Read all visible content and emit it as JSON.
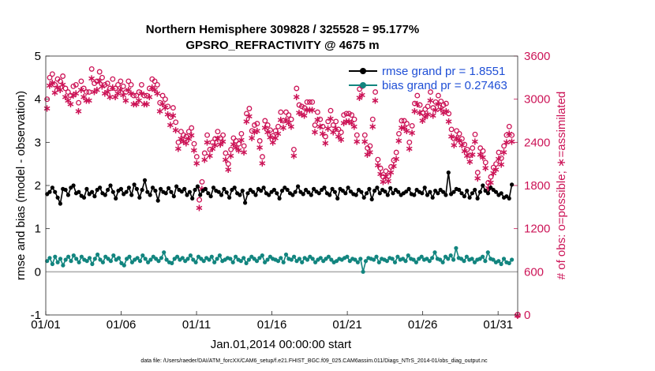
{
  "chart_data": {
    "type": "line",
    "title": "Northern Hemisphere 309828 / 325528 = 95.177%",
    "subtitle": "GPSRO_REFRACTIVITY @ 4675 m",
    "xlabel": "Jan.01,2014 00:00:00 start",
    "ylabel": "rmse and bias (model - observation)",
    "y2label": "# of obs: o=possible; ∗=assimilated",
    "footnote": "data file: /Users/raeder/DAI/ATM_forcXX/CAM6_setup/f.e21.FHIST_BGC.f09_025.CAM6assim.011/Diags_NTrS_2014-01/obs_diag_output.nc",
    "xlim": [
      1,
      32.3
    ],
    "ylim": [
      -1,
      5
    ],
    "y2lim": [
      0,
      3600
    ],
    "x_ticks": [
      1,
      6,
      11,
      16,
      21,
      26,
      31
    ],
    "x_tick_labels": [
      "01/01",
      "01/06",
      "01/11",
      "01/16",
      "01/21",
      "01/26",
      "01/31"
    ],
    "y_ticks": [
      -1,
      0,
      1,
      2,
      3,
      4,
      5
    ],
    "y_tick_labels": [
      "-1",
      "0",
      "1",
      "2",
      "3",
      "4",
      "5"
    ],
    "y2_ticks": [
      0,
      600,
      1200,
      1800,
      2400,
      3000,
      3600
    ],
    "y2_tick_labels": [
      "0",
      "600",
      "1200",
      "1800",
      "2400",
      "3000",
      "3600"
    ],
    "zero_line": 0,
    "legend_position": "top-right",
    "colors": {
      "rmse": "#000000",
      "bias": "#12857f",
      "obs": "#cc1457",
      "zero": "#aaaaaa",
      "right_axis": "#cc1457"
    },
    "series": [
      {
        "name": "rmse grand pr = 1.8551",
        "axis": "left",
        "values": [
          1.8,
          1.85,
          1.95,
          1.85,
          1.72,
          1.58,
          1.92,
          1.9,
          1.78,
          1.95,
          2.0,
          1.82,
          1.85,
          1.76,
          1.72,
          1.92,
          1.8,
          1.85,
          1.75,
          1.9,
          1.95,
          1.82,
          1.78,
          1.9,
          2.0,
          1.85,
          1.7,
          1.88,
          1.92,
          1.8,
          1.85,
          1.95,
          1.78,
          2.02,
          1.92,
          1.72,
          1.9,
          2.12,
          1.85,
          1.78,
          1.95,
          1.88,
          1.65,
          1.92,
          1.85,
          1.82,
          1.94,
          1.85,
          1.75,
          1.98,
          1.9,
          1.86,
          1.92,
          1.78,
          1.85,
          1.7,
          1.9,
          1.98,
          1.78,
          1.88,
          1.92,
          1.82,
          1.75,
          1.95,
          1.88,
          1.85,
          1.78,
          1.92,
          1.84,
          1.72,
          1.9,
          1.95,
          1.82,
          1.78,
          1.88,
          1.6,
          1.82,
          1.9,
          1.85,
          1.78,
          1.92,
          1.88,
          1.95,
          1.82,
          1.78,
          1.85,
          1.9,
          1.82,
          1.7,
          1.88,
          1.95,
          1.9,
          1.82,
          1.78,
          1.85,
          1.98,
          1.85,
          1.8,
          1.9,
          1.84,
          1.78,
          1.92,
          1.86,
          1.82,
          1.9,
          1.95,
          1.82,
          1.78,
          1.92,
          1.85,
          1.7,
          1.92,
          1.88,
          1.82,
          1.95,
          1.86,
          1.8,
          1.78,
          1.9,
          1.85,
          1.72,
          1.82,
          1.92,
          1.68,
          1.88,
          1.95,
          1.82,
          1.9,
          1.86,
          1.78,
          1.94,
          1.82,
          1.9,
          1.85,
          1.78,
          1.82,
          1.86,
          1.92,
          1.8,
          1.78,
          1.9,
          1.85,
          1.82,
          1.95,
          1.78,
          1.85,
          1.72,
          1.88,
          1.82,
          1.9,
          1.85,
          1.78,
          2.3,
          1.8,
          1.85,
          1.92,
          1.9,
          1.82,
          1.75,
          1.88,
          1.72,
          1.82,
          1.9,
          1.7,
          1.85,
          2.0,
          1.88,
          1.82,
          1.95,
          1.9,
          1.85,
          1.78,
          1.82,
          1.72,
          1.75,
          1.7,
          2.02
        ]
      },
      {
        "name": "bias grand pr = 0.27463",
        "axis": "left",
        "values": [
          0.25,
          0.32,
          0.18,
          0.35,
          0.22,
          0.3,
          0.15,
          0.28,
          0.35,
          0.25,
          0.38,
          0.3,
          0.22,
          0.35,
          0.28,
          0.25,
          0.32,
          0.18,
          0.3,
          0.4,
          0.28,
          0.22,
          0.35,
          0.3,
          0.25,
          0.38,
          0.28,
          0.32,
          0.2,
          0.15,
          0.3,
          0.35,
          0.22,
          0.28,
          0.32,
          0.25,
          0.38,
          0.3,
          0.22,
          0.28,
          0.35,
          0.3,
          0.25,
          0.32,
          0.45,
          0.28,
          0.22,
          0.2,
          0.3,
          0.35,
          0.28,
          0.32,
          0.25,
          0.3,
          0.38,
          0.28,
          0.22,
          0.35,
          0.3,
          0.25,
          0.32,
          0.28,
          0.35,
          0.22,
          0.3,
          0.38,
          0.25,
          0.28,
          0.32,
          0.3,
          0.22,
          0.35,
          0.28,
          0.25,
          0.32,
          0.2,
          0.28,
          0.35,
          0.3,
          0.25,
          0.32,
          0.38,
          0.22,
          0.28,
          0.35,
          0.3,
          0.28,
          0.25,
          0.32,
          0.22,
          0.4,
          0.3,
          0.28,
          0.35,
          0.25,
          0.3,
          0.22,
          0.32,
          0.28,
          0.35,
          0.3,
          0.22,
          0.28,
          0.32,
          0.25,
          0.3,
          0.35,
          0.28,
          0.22,
          0.25,
          0.3,
          0.28,
          0.32,
          0.35,
          0.25,
          0.3,
          0.28,
          0.22,
          0.3,
          0.0,
          0.25,
          0.32,
          0.3,
          0.28,
          0.35,
          0.22,
          0.3,
          0.28,
          0.25,
          0.32,
          0.3,
          0.22,
          0.35,
          0.28,
          0.3,
          0.25,
          0.38,
          0.3,
          0.28,
          0.22,
          0.3,
          0.35,
          0.28,
          0.3,
          0.25,
          0.32,
          0.45,
          0.3,
          0.28,
          0.22,
          0.35,
          0.3,
          0.38,
          0.28,
          0.55,
          0.32,
          0.3,
          0.25,
          0.35,
          0.28,
          0.3,
          0.22,
          0.28,
          0.3,
          0.35,
          0.25,
          0.45,
          0.3,
          0.28,
          0.22,
          0.25,
          0.18,
          0.3,
          0.22,
          0.2,
          0.28
        ]
      },
      {
        "name": "possible",
        "axis": "right",
        "marker": "o",
        "values": [
          3000,
          3300,
          3350,
          3200,
          3280,
          3250,
          3320,
          3150,
          3100,
          3050,
          3180,
          3200,
          2950,
          3250,
          3150,
          3100,
          3100,
          3420,
          3220,
          3250,
          3380,
          3300,
          3200,
          3220,
          3150,
          3280,
          3150,
          3200,
          3250,
          3180,
          3100,
          3250,
          3200,
          3050,
          3050,
          3100,
          3200,
          3050,
          3050,
          3150,
          3280,
          3250,
          3200,
          2950,
          3050,
          3000,
          2900,
          2750,
          2880,
          2680,
          2400,
          2550,
          2500,
          2480,
          2550,
          2600,
          2380,
          2200,
          1600,
          1850,
          2250,
          2500,
          2300,
          2400,
          2450,
          2550,
          2460,
          2500,
          2250,
          2100,
          2300,
          2460,
          2420,
          2380,
          2520,
          2350,
          2800,
          2870,
          2560,
          2640,
          2660,
          2420,
          2200,
          2700,
          2640,
          2570,
          2490,
          2560,
          2620,
          2820,
          2700,
          2820,
          2780,
          2720,
          2300,
          3150,
          2920,
          2900,
          2880,
          2960,
          2960,
          2960,
          2640,
          2820,
          2720,
          2620,
          2480,
          2690,
          2840,
          2640,
          2690,
          2580,
          2540,
          2780,
          2800,
          2800,
          2780,
          2720,
          2500,
          3140,
          3180,
          2500,
          2320,
          2350,
          2720,
          3100,
          2160,
          2040,
          1920,
          2000,
          1930,
          2060,
          2150,
          2260,
          2520,
          2700,
          2700,
          2660,
          2400,
          2630,
          2940,
          3050,
          2920,
          2810,
          2860,
          2900,
          3100,
          2880,
          2960,
          3050,
          2970,
          2920,
          2940,
          2800,
          2580,
          2450,
          2560,
          2520,
          2450,
          2370,
          2300,
          2220,
          2320,
          2510,
          1980,
          2320,
          2280,
          2120,
          1840,
          1920,
          2050,
          2100,
          2260,
          2180,
          2350,
          2500,
          2620,
          2500
        ]
      },
      {
        "name": "assimilated",
        "axis": "right",
        "marker": "*",
        "values": [
          2880,
          3200,
          3240,
          3100,
          3170,
          3140,
          3210,
          3040,
          2990,
          2940,
          3060,
          3090,
          2840,
          3140,
          3040,
          2990,
          2990,
          3300,
          3110,
          3140,
          3260,
          3190,
          3090,
          3110,
          3040,
          3170,
          3040,
          3090,
          3140,
          3070,
          2990,
          3140,
          3090,
          2940,
          2940,
          2990,
          3090,
          2940,
          2940,
          3040,
          3170,
          3140,
          3090,
          2840,
          2940,
          2890,
          2800,
          2650,
          2780,
          2580,
          2320,
          2460,
          2420,
          2400,
          2460,
          2510,
          2300,
          2120,
          1500,
          1760,
          2170,
          2410,
          2220,
          2320,
          2370,
          2460,
          2380,
          2420,
          2170,
          2030,
          2220,
          2380,
          2340,
          2300,
          2440,
          2270,
          2700,
          2770,
          2470,
          2550,
          2570,
          2340,
          2120,
          2610,
          2550,
          2480,
          2410,
          2470,
          2530,
          2720,
          2610,
          2720,
          2680,
          2630,
          2220,
          3040,
          2820,
          2800,
          2780,
          2860,
          2860,
          2860,
          2550,
          2720,
          2630,
          2530,
          2400,
          2600,
          2740,
          2550,
          2600,
          2490,
          2450,
          2680,
          2700,
          2700,
          2680,
          2630,
          2420,
          3030,
          3070,
          2420,
          2240,
          2270,
          2630,
          2990,
          2090,
          1970,
          1860,
          1930,
          1870,
          1990,
          2080,
          2180,
          2430,
          2610,
          2610,
          2570,
          2320,
          2540,
          2840,
          2940,
          2820,
          2710,
          2760,
          2800,
          2990,
          2780,
          2860,
          2940,
          2870,
          2820,
          2840,
          2700,
          2490,
          2370,
          2470,
          2430,
          2370,
          2290,
          2220,
          2140,
          2240,
          2420,
          1910,
          2240,
          2200,
          2050,
          1770,
          1850,
          1980,
          2030,
          2180,
          2100,
          2270,
          2410,
          2530,
          2420
        ]
      }
    ]
  }
}
